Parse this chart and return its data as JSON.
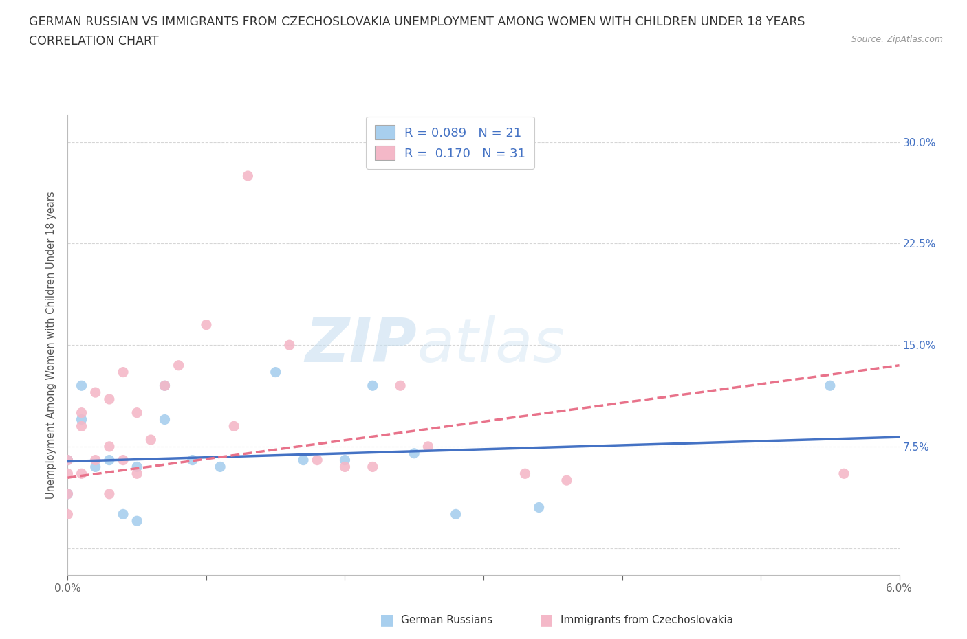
{
  "title_line1": "GERMAN RUSSIAN VS IMMIGRANTS FROM CZECHOSLOVAKIA UNEMPLOYMENT AMONG WOMEN WITH CHILDREN UNDER 18 YEARS",
  "title_line2": "CORRELATION CHART",
  "source": "Source: ZipAtlas.com",
  "ylabel": "Unemployment Among Women with Children Under 18 years",
  "xlim": [
    0.0,
    0.06
  ],
  "ylim": [
    -0.02,
    0.32
  ],
  "xticks": [
    0.0,
    0.01,
    0.02,
    0.03,
    0.04,
    0.05,
    0.06
  ],
  "xticklabels": [
    "0.0%",
    "",
    "",
    "",
    "",
    "",
    "6.0%"
  ],
  "ytick_positions": [
    0.0,
    0.075,
    0.15,
    0.225,
    0.3
  ],
  "ytick_labels": [
    "",
    "7.5%",
    "15.0%",
    "22.5%",
    "30.0%"
  ],
  "blue_color": "#A8CFEE",
  "pink_color": "#F4B8C8",
  "blue_line_color": "#4472C4",
  "pink_line_color": "#E8728A",
  "watermark_zip": "ZIP",
  "watermark_atlas": "atlas",
  "legend_text1": "R = 0.089   N = 21",
  "legend_text2": "R =  0.170   N = 31",
  "label1": "German Russians",
  "label2": "Immigrants from Czechoslovakia",
  "blue_scatter_x": [
    0.0,
    0.0,
    0.001,
    0.001,
    0.002,
    0.003,
    0.004,
    0.005,
    0.005,
    0.007,
    0.007,
    0.009,
    0.011,
    0.015,
    0.017,
    0.02,
    0.022,
    0.025,
    0.028,
    0.034,
    0.055
  ],
  "blue_scatter_y": [
    0.065,
    0.04,
    0.12,
    0.095,
    0.06,
    0.065,
    0.025,
    0.06,
    0.02,
    0.12,
    0.095,
    0.065,
    0.06,
    0.13,
    0.065,
    0.065,
    0.12,
    0.07,
    0.025,
    0.03,
    0.12
  ],
  "pink_scatter_x": [
    0.0,
    0.0,
    0.0,
    0.0,
    0.001,
    0.001,
    0.001,
    0.002,
    0.002,
    0.003,
    0.003,
    0.003,
    0.004,
    0.004,
    0.005,
    0.005,
    0.006,
    0.007,
    0.008,
    0.01,
    0.012,
    0.013,
    0.016,
    0.018,
    0.02,
    0.022,
    0.024,
    0.026,
    0.033,
    0.036,
    0.056
  ],
  "pink_scatter_y": [
    0.065,
    0.055,
    0.04,
    0.025,
    0.1,
    0.09,
    0.055,
    0.115,
    0.065,
    0.11,
    0.075,
    0.04,
    0.13,
    0.065,
    0.1,
    0.055,
    0.08,
    0.12,
    0.135,
    0.165,
    0.09,
    0.275,
    0.15,
    0.065,
    0.06,
    0.06,
    0.12,
    0.075,
    0.055,
    0.05,
    0.055
  ],
  "blue_trend_x": [
    0.0,
    0.06
  ],
  "blue_trend_y": [
    0.064,
    0.082
  ],
  "pink_trend_x": [
    0.0,
    0.06
  ],
  "pink_trend_y": [
    0.052,
    0.135
  ],
  "background_color": "#FFFFFF",
  "grid_color": "#CCCCCC"
}
